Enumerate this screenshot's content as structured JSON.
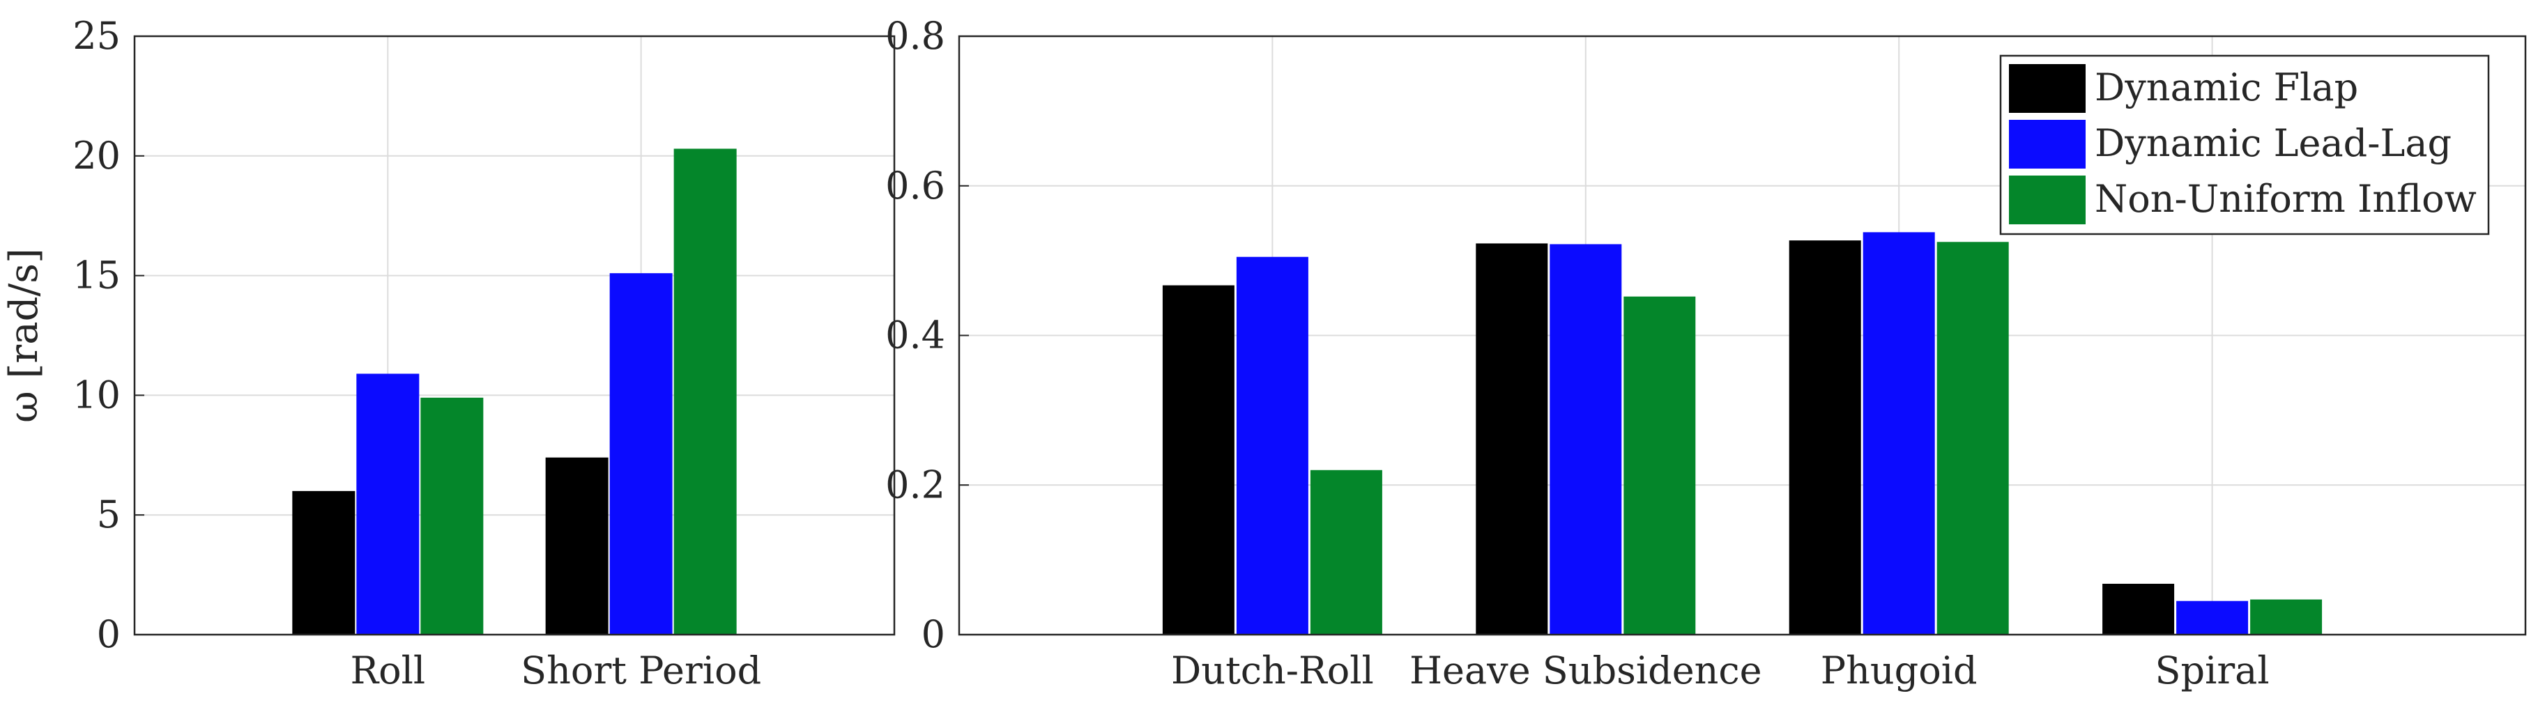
{
  "colors": {
    "Dynamic Flap": "#000000",
    "Dynamic Lead-Lag": "#0b0bff",
    "Non-Uniform Inflow": "#04862a",
    "grid": "#dcdcdc",
    "axis": "#262626"
  },
  "chart_data": [
    {
      "type": "bar",
      "categories": [
        "Roll",
        "Short Period"
      ],
      "series": [
        {
          "name": "Dynamic Flap",
          "values": [
            6.0,
            7.4
          ]
        },
        {
          "name": "Dynamic Lead-Lag",
          "values": [
            10.9,
            15.1
          ]
        },
        {
          "name": "Non-Uniform Inflow",
          "values": [
            9.9,
            20.3
          ]
        }
      ],
      "ylabel": "ω [rad/s]",
      "ylim": [
        0,
        25
      ],
      "yticks": [
        "0",
        "5",
        "10",
        "15",
        "20",
        "25"
      ],
      "grid": true,
      "legend": "none"
    },
    {
      "type": "bar",
      "categories": [
        "Dutch-Roll",
        "Heave Subsidence",
        "Phugoid",
        "Spiral"
      ],
      "series": [
        {
          "name": "Dynamic Flap",
          "values": [
            0.467,
            0.523,
            0.527,
            0.068
          ]
        },
        {
          "name": "Dynamic Lead-Lag",
          "values": [
            0.505,
            0.522,
            0.538,
            0.045
          ]
        },
        {
          "name": "Non-Uniform Inflow",
          "values": [
            0.22,
            0.452,
            0.525,
            0.047
          ]
        }
      ],
      "ylim": [
        0,
        0.8
      ],
      "yticks": [
        "0",
        "0.2",
        "0.4",
        "0.6",
        "0.8"
      ],
      "grid": true,
      "legend": "top-right"
    }
  ]
}
